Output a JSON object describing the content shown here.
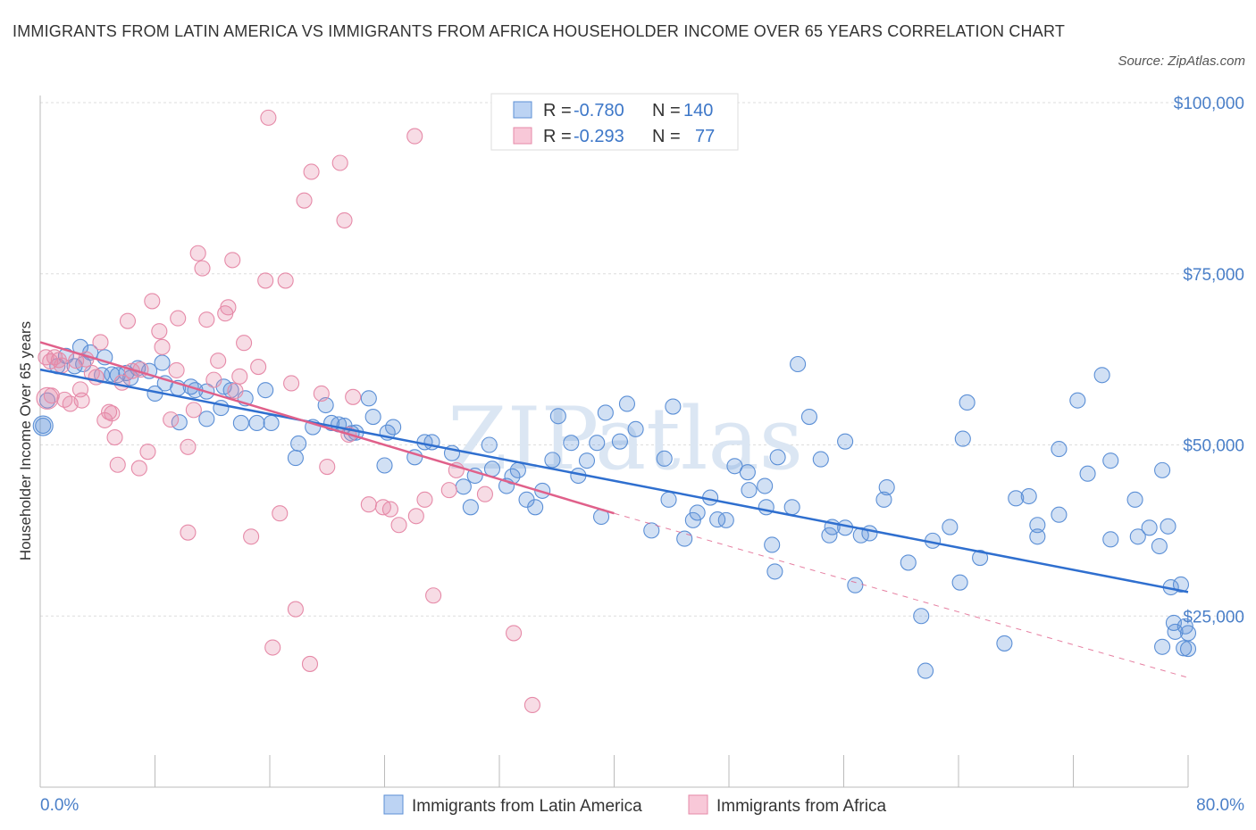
{
  "title": "IMMIGRANTS FROM LATIN AMERICA VS IMMIGRANTS FROM AFRICA HOUSEHOLDER INCOME OVER 65 YEARS CORRELATION CHART",
  "source": "Source: ZipAtlas.com",
  "watermark": "ZIPatlas",
  "colors": {
    "blue": "#5b8fd6",
    "pink": "#e68aa8",
    "blue_line": "#2f6fcf",
    "pink_line": "#e0608a",
    "tick_text": "#4a7fc8"
  },
  "legend": {
    "rows": [
      {
        "r_label": "R =",
        "r_value": "-0.780",
        "n_label": "N =",
        "n_value": "140"
      },
      {
        "r_label": "R =",
        "r_value": "-0.293",
        "n_label": "N =",
        "n_value": "77"
      }
    ]
  },
  "chart_data": {
    "type": "scatter",
    "title": "IMMIGRANTS FROM LATIN AMERICA VS IMMIGRANTS FROM AFRICA HOUSEHOLDER INCOME OVER 65 YEARS CORRELATION CHART",
    "xlabel": "",
    "ylabel": "Householder Income Over 65 years",
    "xlim": [
      0,
      80
    ],
    "ylim": [
      0,
      100000
    ],
    "x_tick_labels": [
      "0.0%",
      "80.0%"
    ],
    "y_ticks": [
      25000,
      50000,
      75000,
      100000
    ],
    "y_tick_labels": [
      "$25,000",
      "$50,000",
      "$75,000",
      "$100,000"
    ],
    "grid": true,
    "legend_position": "top-center",
    "series": [
      {
        "name": "Immigrants from Latin America",
        "color": "#5b8fd6",
        "trend": {
          "x": [
            0,
            80
          ],
          "y": [
            61000,
            28500
          ],
          "style": "solid"
        },
        "points": [
          [
            0.2,
            52800
          ],
          [
            0.5,
            56500
          ],
          [
            1.2,
            61500
          ],
          [
            1.8,
            63000
          ],
          [
            2.4,
            61500
          ],
          [
            2.8,
            64300
          ],
          [
            3.5,
            63500
          ],
          [
            4.3,
            60200
          ],
          [
            4.5,
            62800
          ],
          [
            5.0,
            60300
          ],
          [
            5.4,
            60200
          ],
          [
            6.0,
            60500
          ],
          [
            6.3,
            59800
          ],
          [
            8.0,
            57500
          ],
          [
            8.7,
            59000
          ],
          [
            9.6,
            58300
          ],
          [
            10.8,
            58000
          ],
          [
            8.5,
            62000
          ],
          [
            10.5,
            58500
          ],
          [
            11.6,
            57800
          ],
          [
            12.8,
            58500
          ],
          [
            13.3,
            58000
          ],
          [
            14.0,
            53200
          ],
          [
            14.3,
            56800
          ],
          [
            11.6,
            53800
          ],
          [
            12.6,
            55400
          ],
          [
            15.1,
            53200
          ],
          [
            16.1,
            53200
          ],
          [
            17.8,
            48100
          ],
          [
            18.0,
            50200
          ],
          [
            19.0,
            52600
          ],
          [
            19.9,
            55800
          ],
          [
            20.8,
            53000
          ],
          [
            21.2,
            52800
          ],
          [
            21.7,
            51700
          ],
          [
            22.0,
            51800
          ],
          [
            22.9,
            56800
          ],
          [
            23.2,
            54100
          ],
          [
            24.2,
            51800
          ],
          [
            24.6,
            52600
          ],
          [
            26.1,
            48200
          ],
          [
            26.8,
            50400
          ],
          [
            27.3,
            50400
          ],
          [
            28.7,
            48800
          ],
          [
            29.5,
            43900
          ],
          [
            30.0,
            40900
          ],
          [
            30.3,
            45500
          ],
          [
            31.3,
            50000
          ],
          [
            32.5,
            44000
          ],
          [
            32.9,
            45400
          ],
          [
            33.3,
            46300
          ],
          [
            33.9,
            42000
          ],
          [
            34.5,
            40900
          ],
          [
            35.0,
            43300
          ],
          [
            35.7,
            47800
          ],
          [
            37.0,
            50300
          ],
          [
            36.1,
            54200
          ],
          [
            37.5,
            45500
          ],
          [
            38.1,
            47700
          ],
          [
            39.1,
            39500
          ],
          [
            38.8,
            50300
          ],
          [
            39.4,
            54700
          ],
          [
            40.4,
            50500
          ],
          [
            40.9,
            56000
          ],
          [
            41.5,
            52300
          ],
          [
            42.6,
            37500
          ],
          [
            43.8,
            42000
          ],
          [
            44.1,
            55600
          ],
          [
            44.9,
            36300
          ],
          [
            45.5,
            39000
          ],
          [
            45.8,
            40100
          ],
          [
            46.7,
            42300
          ],
          [
            47.2,
            39100
          ],
          [
            47.8,
            39000
          ],
          [
            48.4,
            46900
          ],
          [
            49.3,
            46000
          ],
          [
            49.4,
            43400
          ],
          [
            50.5,
            44000
          ],
          [
            50.6,
            40900
          ],
          [
            51.0,
            35400
          ],
          [
            51.2,
            31500
          ],
          [
            51.4,
            48200
          ],
          [
            52.4,
            40900
          ],
          [
            52.8,
            61800
          ],
          [
            53.6,
            54100
          ],
          [
            54.4,
            47900
          ],
          [
            55.0,
            36800
          ],
          [
            55.2,
            38000
          ],
          [
            56.1,
            37900
          ],
          [
            56.1,
            50500
          ],
          [
            56.8,
            29500
          ],
          [
            57.2,
            36800
          ],
          [
            57.8,
            37100
          ],
          [
            58.8,
            42000
          ],
          [
            59.0,
            43800
          ],
          [
            60.5,
            32800
          ],
          [
            61.4,
            25000
          ],
          [
            61.7,
            17000
          ],
          [
            62.2,
            36000
          ],
          [
            63.4,
            38000
          ],
          [
            64.1,
            29900
          ],
          [
            64.3,
            50900
          ],
          [
            64.6,
            56200
          ],
          [
            65.5,
            33500
          ],
          [
            67.2,
            21000
          ],
          [
            68.0,
            42200
          ],
          [
            68.9,
            42500
          ],
          [
            69.5,
            38300
          ],
          [
            69.5,
            36600
          ],
          [
            71.0,
            39800
          ],
          [
            71.0,
            49400
          ],
          [
            72.3,
            56500
          ],
          [
            73.0,
            45800
          ],
          [
            74.0,
            60200
          ],
          [
            74.6,
            47700
          ],
          [
            74.6,
            36200
          ],
          [
            76.3,
            42000
          ],
          [
            76.5,
            36600
          ],
          [
            77.3,
            37900
          ],
          [
            78.0,
            35200
          ],
          [
            78.2,
            20500
          ],
          [
            78.6,
            38100
          ],
          [
            78.2,
            46300
          ],
          [
            78.8,
            29200
          ],
          [
            79.0,
            24000
          ],
          [
            79.1,
            22700
          ],
          [
            79.8,
            23500
          ],
          [
            80.0,
            22500
          ],
          [
            79.5,
            29600
          ],
          [
            80.0,
            20200
          ],
          [
            79.7,
            20300
          ],
          [
            6.8,
            61200
          ],
          [
            7.6,
            60800
          ],
          [
            3.0,
            61800
          ],
          [
            9.7,
            53300
          ],
          [
            15.7,
            58000
          ],
          [
            20.3,
            53200
          ],
          [
            24.0,
            47000
          ],
          [
            31.5,
            46500
          ],
          [
            43.5,
            48000
          ]
        ]
      },
      {
        "name": "Immigrants from Africa",
        "color": "#e68aa8",
        "trend": {
          "x": [
            0,
            40
          ],
          "y": [
            65000,
            40000
          ],
          "style": "solid",
          "extended_to": [
            80,
            16000
          ],
          "extended_style": "dashed"
        },
        "points": [
          [
            0.4,
            62800
          ],
          [
            0.7,
            62200
          ],
          [
            0.8,
            57200
          ],
          [
            1.0,
            62800
          ],
          [
            1.3,
            62400
          ],
          [
            1.5,
            61600
          ],
          [
            1.7,
            56600
          ],
          [
            2.1,
            56000
          ],
          [
            2.5,
            62300
          ],
          [
            2.8,
            58100
          ],
          [
            2.9,
            56500
          ],
          [
            3.2,
            62500
          ],
          [
            3.6,
            60500
          ],
          [
            3.9,
            59900
          ],
          [
            4.2,
            65000
          ],
          [
            4.5,
            53600
          ],
          [
            4.8,
            54800
          ],
          [
            5.0,
            54600
          ],
          [
            5.2,
            51100
          ],
          [
            5.7,
            59100
          ],
          [
            5.4,
            47100
          ],
          [
            6.1,
            68100
          ],
          [
            6.4,
            60800
          ],
          [
            6.9,
            46600
          ],
          [
            7.0,
            61000
          ],
          [
            7.5,
            49000
          ],
          [
            7.8,
            71000
          ],
          [
            8.3,
            66600
          ],
          [
            8.5,
            64300
          ],
          [
            9.1,
            53700
          ],
          [
            9.5,
            60900
          ],
          [
            10.3,
            37200
          ],
          [
            10.3,
            49700
          ],
          [
            10.7,
            55100
          ],
          [
            11.0,
            78000
          ],
          [
            11.3,
            75800
          ],
          [
            11.6,
            68300
          ],
          [
            12.1,
            59500
          ],
          [
            12.4,
            62300
          ],
          [
            12.9,
            69200
          ],
          [
            13.1,
            70100
          ],
          [
            13.4,
            77000
          ],
          [
            13.6,
            57900
          ],
          [
            14.2,
            64900
          ],
          [
            14.7,
            36600
          ],
          [
            15.2,
            61400
          ],
          [
            15.7,
            74000
          ],
          [
            15.9,
            97800
          ],
          [
            16.7,
            40000
          ],
          [
            17.1,
            74000
          ],
          [
            17.5,
            59000
          ],
          [
            17.8,
            26000
          ],
          [
            18.4,
            85700
          ],
          [
            18.8,
            18000
          ],
          [
            18.9,
            89900
          ],
          [
            19.6,
            57500
          ],
          [
            20.0,
            46800
          ],
          [
            20.9,
            91200
          ],
          [
            21.2,
            82800
          ],
          [
            21.8,
            57000
          ],
          [
            22.9,
            41300
          ],
          [
            23.9,
            40900
          ],
          [
            24.4,
            40600
          ],
          [
            25.0,
            38300
          ],
          [
            26.1,
            95100
          ],
          [
            26.2,
            39600
          ],
          [
            26.8,
            42000
          ],
          [
            27.4,
            28000
          ],
          [
            28.5,
            43400
          ],
          [
            29.0,
            46300
          ],
          [
            31.0,
            42800
          ],
          [
            33.0,
            22500
          ],
          [
            34.3,
            12000
          ],
          [
            16.2,
            20400
          ],
          [
            9.6,
            68500
          ],
          [
            13.9,
            60000
          ],
          [
            21.5,
            51500
          ]
        ]
      }
    ]
  },
  "bottom_legend": [
    "Immigrants from Latin America",
    "Immigrants from Africa"
  ]
}
